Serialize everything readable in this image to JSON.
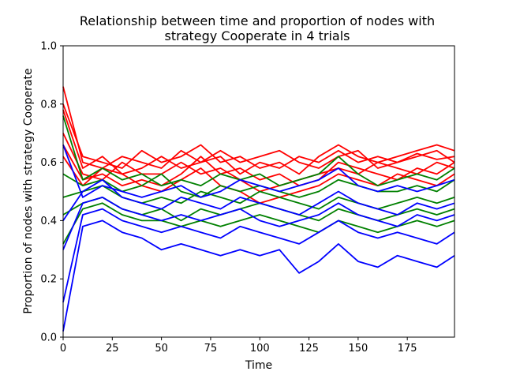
{
  "chart_data": {
    "type": "line",
    "title_line1": "Relationship between time and proportion of nodes with",
    "title_line2": "strategy Cooperate in 4 trials",
    "xlabel": "Time",
    "ylabel": "Proportion of nodes with strategy Cooperate",
    "xlim": [
      0,
      199
    ],
    "ylim": [
      0.0,
      1.0
    ],
    "x_ticks": [
      0,
      25,
      50,
      75,
      100,
      125,
      150,
      175
    ],
    "y_ticks": [
      0.0,
      0.2,
      0.4,
      0.6,
      0.8,
      1.0
    ],
    "x_tick_labels": [
      "0",
      "25",
      "50",
      "75",
      "100",
      "125",
      "150",
      "175"
    ],
    "y_tick_labels": [
      "0.0",
      "0.2",
      "0.4",
      "0.6",
      "0.8",
      "1.0"
    ],
    "grid": false,
    "legend": "none",
    "x": [
      0,
      10,
      20,
      30,
      40,
      50,
      60,
      70,
      80,
      90,
      100,
      110,
      120,
      130,
      140,
      150,
      160,
      170,
      180,
      190,
      199
    ],
    "series": [
      {
        "color": "#ff0000",
        "values": [
          0.86,
          0.6,
          0.58,
          0.62,
          0.6,
          0.58,
          0.64,
          0.6,
          0.62,
          0.56,
          0.6,
          0.58,
          0.62,
          0.6,
          0.64,
          0.6,
          0.62,
          0.6,
          0.63,
          0.61,
          0.62
        ]
      },
      {
        "color": "#ff0000",
        "values": [
          0.8,
          0.62,
          0.6,
          0.58,
          0.64,
          0.6,
          0.62,
          0.66,
          0.6,
          0.62,
          0.58,
          0.6,
          0.56,
          0.62,
          0.66,
          0.62,
          0.6,
          0.62,
          0.64,
          0.66,
          0.64
        ]
      },
      {
        "color": "#ff0000",
        "values": [
          0.78,
          0.58,
          0.62,
          0.56,
          0.58,
          0.62,
          0.58,
          0.6,
          0.64,
          0.6,
          0.62,
          0.64,
          0.6,
          0.58,
          0.62,
          0.64,
          0.58,
          0.6,
          0.62,
          0.64,
          0.6
        ]
      },
      {
        "color": "#ff0000",
        "values": [
          0.7,
          0.56,
          0.54,
          0.6,
          0.56,
          0.56,
          0.6,
          0.56,
          0.58,
          0.54,
          0.5,
          0.52,
          0.54,
          0.56,
          0.58,
          0.56,
          0.6,
          0.58,
          0.56,
          0.6,
          0.58
        ]
      },
      {
        "color": "#ff0000",
        "values": [
          0.66,
          0.54,
          0.56,
          0.52,
          0.54,
          0.52,
          0.56,
          0.62,
          0.56,
          0.58,
          0.54,
          0.56,
          0.52,
          0.54,
          0.6,
          0.58,
          0.56,
          0.54,
          0.58,
          0.56,
          0.6
        ]
      },
      {
        "color": "#ff0000",
        "values": [
          0.62,
          0.52,
          0.58,
          0.56,
          0.52,
          0.5,
          0.54,
          0.58,
          0.52,
          0.5,
          0.46,
          0.48,
          0.5,
          0.52,
          0.56,
          0.54,
          0.52,
          0.56,
          0.54,
          0.52,
          0.56
        ]
      },
      {
        "color": "#008000",
        "values": [
          0.76,
          0.54,
          0.58,
          0.54,
          0.56,
          0.52,
          0.54,
          0.52,
          0.56,
          0.54,
          0.56,
          0.52,
          0.54,
          0.56,
          0.62,
          0.56,
          0.52,
          0.54,
          0.56,
          0.54,
          0.58
        ]
      },
      {
        "color": "#008000",
        "values": [
          0.56,
          0.52,
          0.54,
          0.5,
          0.52,
          0.56,
          0.5,
          0.48,
          0.52,
          0.5,
          0.52,
          0.5,
          0.48,
          0.5,
          0.54,
          0.52,
          0.5,
          0.5,
          0.52,
          0.5,
          0.54
        ]
      },
      {
        "color": "#008000",
        "values": [
          0.48,
          0.5,
          0.52,
          0.48,
          0.46,
          0.48,
          0.46,
          0.5,
          0.48,
          0.46,
          0.5,
          0.48,
          0.46,
          0.44,
          0.48,
          0.46,
          0.44,
          0.46,
          0.48,
          0.46,
          0.48
        ]
      },
      {
        "color": "#008000",
        "values": [
          0.42,
          0.46,
          0.48,
          0.44,
          0.42,
          0.44,
          0.4,
          0.44,
          0.42,
          0.44,
          0.46,
          0.44,
          0.42,
          0.4,
          0.44,
          0.42,
          0.4,
          0.42,
          0.44,
          0.42,
          0.44
        ]
      },
      {
        "color": "#008000",
        "values": [
          0.32,
          0.44,
          0.46,
          0.42,
          0.4,
          0.4,
          0.38,
          0.4,
          0.38,
          0.4,
          0.42,
          0.4,
          0.38,
          0.36,
          0.4,
          0.38,
          0.36,
          0.38,
          0.4,
          0.38,
          0.4
        ]
      },
      {
        "color": "#0000ff",
        "values": [
          0.66,
          0.48,
          0.52,
          0.5,
          0.48,
          0.5,
          0.52,
          0.48,
          0.5,
          0.54,
          0.52,
          0.5,
          0.52,
          0.54,
          0.58,
          0.52,
          0.5,
          0.52,
          0.5,
          0.52,
          0.54
        ]
      },
      {
        "color": "#0000ff",
        "values": [
          0.4,
          0.5,
          0.54,
          0.48,
          0.46,
          0.44,
          0.48,
          0.46,
          0.44,
          0.48,
          0.46,
          0.44,
          0.42,
          0.46,
          0.5,
          0.46,
          0.44,
          0.42,
          0.46,
          0.44,
          0.46
        ]
      },
      {
        "color": "#0000ff",
        "values": [
          0.3,
          0.46,
          0.48,
          0.44,
          0.42,
          0.4,
          0.42,
          0.4,
          0.42,
          0.44,
          0.4,
          0.38,
          0.4,
          0.42,
          0.46,
          0.42,
          0.4,
          0.38,
          0.42,
          0.4,
          0.42
        ]
      },
      {
        "color": "#0000ff",
        "values": [
          0.12,
          0.42,
          0.44,
          0.4,
          0.38,
          0.36,
          0.38,
          0.36,
          0.34,
          0.38,
          0.36,
          0.34,
          0.32,
          0.36,
          0.4,
          0.36,
          0.34,
          0.36,
          0.34,
          0.32,
          0.36
        ]
      },
      {
        "color": "#0000ff",
        "values": [
          0.02,
          0.38,
          0.4,
          0.36,
          0.34,
          0.3,
          0.32,
          0.3,
          0.28,
          0.3,
          0.28,
          0.3,
          0.22,
          0.26,
          0.32,
          0.26,
          0.24,
          0.28,
          0.26,
          0.24,
          0.28
        ]
      }
    ]
  }
}
